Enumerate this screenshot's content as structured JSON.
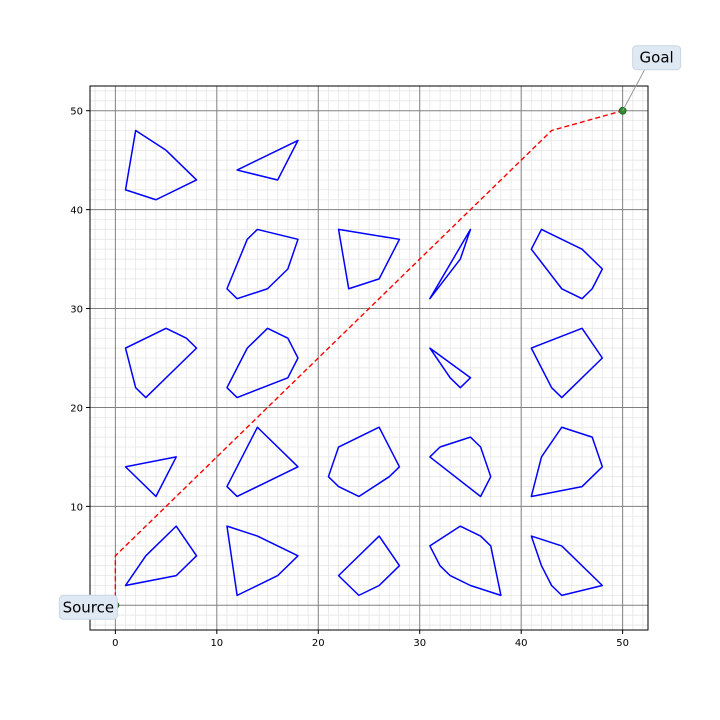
{
  "chart_data": {
    "type": "scatter",
    "title": "",
    "xlabel": "",
    "ylabel": "",
    "xlim": [
      -2.5,
      52.5
    ],
    "ylim": [
      -2.5,
      52.5
    ],
    "x_ticks": [
      0,
      10,
      20,
      30,
      40,
      50
    ],
    "y_ticks": [
      0,
      10,
      20,
      30,
      40,
      50
    ],
    "x_tick_labels": [
      "0",
      "10",
      "20",
      "30",
      "40",
      "50"
    ],
    "y_tick_labels": [
      "0",
      "10",
      "20",
      "30",
      "40",
      "50"
    ],
    "major_grid": true,
    "minor_grid": true,
    "minor_step": 1,
    "colors": {
      "obstacle": "#0000ff",
      "path": "#ff0000",
      "point": "#2e8b2e",
      "major_grid": "#808080",
      "minor_grid": "#e6e6e6"
    },
    "source": {
      "label": "Source",
      "x": 0,
      "y": 0
    },
    "goal": {
      "label": "Goal",
      "x": 50,
      "y": 50
    },
    "path": [
      [
        0,
        0
      ],
      [
        0,
        5
      ],
      [
        43,
        48
      ],
      [
        50,
        50
      ]
    ],
    "obstacles": [
      [
        [
          2,
          48
        ],
        [
          5,
          46
        ],
        [
          8,
          43
        ],
        [
          4,
          41
        ],
        [
          1,
          42
        ]
      ],
      [
        [
          12,
          44
        ],
        [
          18,
          47
        ],
        [
          16,
          43
        ]
      ],
      [
        [
          14,
          38
        ],
        [
          18,
          37
        ],
        [
          17,
          34
        ],
        [
          15,
          32
        ],
        [
          12,
          31
        ],
        [
          11,
          32
        ],
        [
          13,
          37
        ]
      ],
      [
        [
          22,
          38
        ],
        [
          28,
          37
        ],
        [
          26,
          33
        ],
        [
          23,
          32
        ]
      ],
      [
        [
          35,
          38
        ],
        [
          34,
          35
        ],
        [
          31,
          31
        ]
      ],
      [
        [
          42,
          38
        ],
        [
          46,
          36
        ],
        [
          48,
          34
        ],
        [
          47,
          32
        ],
        [
          46,
          31
        ],
        [
          44,
          32
        ],
        [
          41,
          36
        ]
      ],
      [
        [
          5,
          28
        ],
        [
          7,
          27
        ],
        [
          8,
          26
        ],
        [
          3,
          21
        ],
        [
          2,
          22
        ],
        [
          1,
          26
        ]
      ],
      [
        [
          15,
          28
        ],
        [
          17,
          27
        ],
        [
          18,
          25
        ],
        [
          17,
          23
        ],
        [
          12,
          21
        ],
        [
          11,
          22
        ],
        [
          13,
          26
        ]
      ],
      [
        [
          31,
          26
        ],
        [
          35,
          23
        ],
        [
          34,
          22
        ],
        [
          33,
          23
        ]
      ],
      [
        [
          46,
          28
        ],
        [
          48,
          25
        ],
        [
          44,
          21
        ],
        [
          43,
          22
        ],
        [
          41,
          26
        ]
      ],
      [
        [
          1,
          14
        ],
        [
          6,
          15
        ],
        [
          4,
          11
        ]
      ],
      [
        [
          14,
          18
        ],
        [
          18,
          14
        ],
        [
          12,
          11
        ],
        [
          11,
          12
        ]
      ],
      [
        [
          26,
          18
        ],
        [
          28,
          14
        ],
        [
          27,
          13
        ],
        [
          24,
          11
        ],
        [
          22,
          12
        ],
        [
          21,
          13
        ],
        [
          22,
          16
        ]
      ],
      [
        [
          32,
          16
        ],
        [
          35,
          17
        ],
        [
          36,
          16
        ],
        [
          37,
          13
        ],
        [
          36,
          11
        ],
        [
          31,
          15
        ]
      ],
      [
        [
          44,
          18
        ],
        [
          47,
          17
        ],
        [
          48,
          14
        ],
        [
          46,
          12
        ],
        [
          41,
          11
        ],
        [
          42,
          15
        ]
      ],
      [
        [
          6,
          8
        ],
        [
          8,
          5
        ],
        [
          6,
          3
        ],
        [
          1,
          2
        ],
        [
          3,
          5
        ]
      ],
      [
        [
          11,
          8
        ],
        [
          14,
          7
        ],
        [
          18,
          5
        ],
        [
          16,
          3
        ],
        [
          12,
          1
        ]
      ],
      [
        [
          26,
          7
        ],
        [
          28,
          4
        ],
        [
          26,
          2
        ],
        [
          24,
          1
        ],
        [
          22,
          3
        ]
      ],
      [
        [
          34,
          8
        ],
        [
          36,
          7
        ],
        [
          37,
          6
        ],
        [
          38,
          1
        ],
        [
          35,
          2
        ],
        [
          33,
          3
        ],
        [
          32,
          4
        ],
        [
          31,
          6
        ]
      ],
      [
        [
          41,
          7
        ],
        [
          44,
          6
        ],
        [
          48,
          2
        ],
        [
          44,
          1
        ],
        [
          43,
          2
        ],
        [
          42,
          4
        ]
      ]
    ]
  }
}
